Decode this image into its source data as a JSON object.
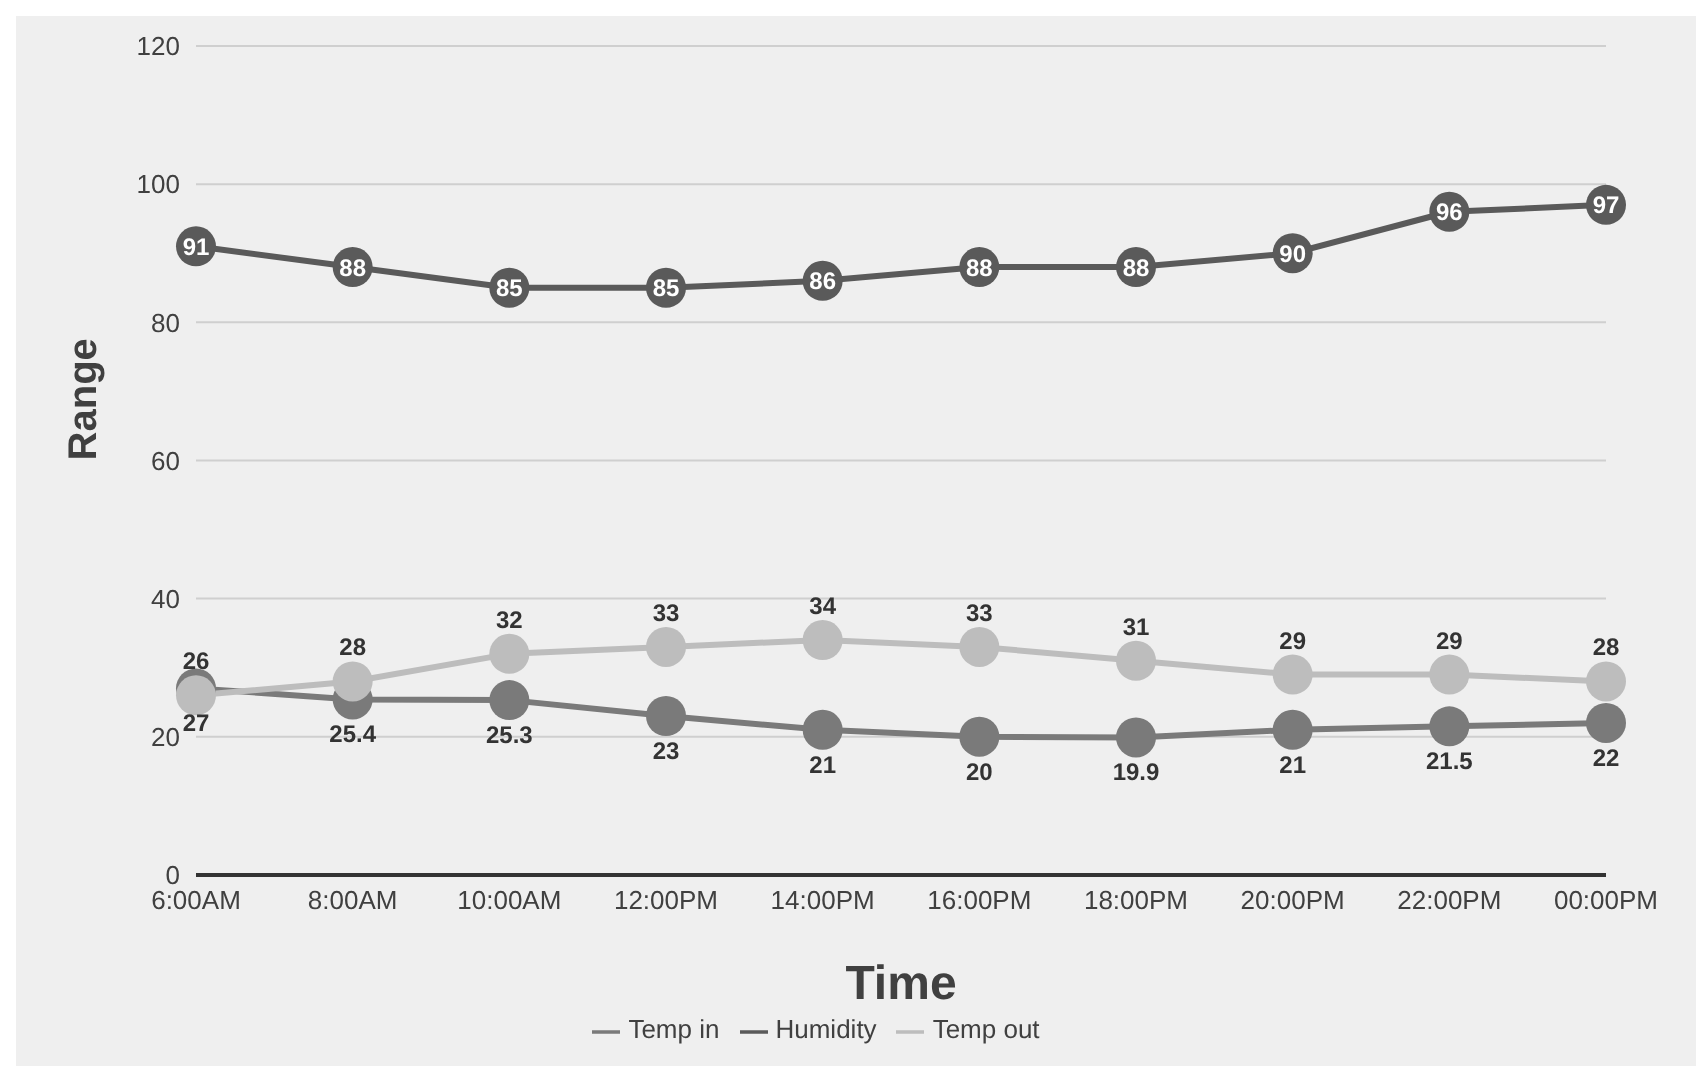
{
  "chart_data": {
    "type": "line",
    "xlabel": "Time",
    "ylabel": "Range",
    "categories": [
      "6:00AM",
      "8:00AM",
      "10:00AM",
      "12:00PM",
      "14:00PM",
      "16:00PM",
      "18:00PM",
      "20:00PM",
      "22:00PM",
      "00:00PM"
    ],
    "series": [
      {
        "name": "Temp in",
        "color": "#7a7a7a",
        "values": [
          27,
          25.4,
          25.3,
          23,
          21,
          20,
          19.9,
          21,
          21.5,
          22
        ]
      },
      {
        "name": "Humidity",
        "color": "#5a5a5a",
        "values": [
          91,
          88,
          85,
          85,
          86,
          88,
          88,
          90,
          96,
          97
        ]
      },
      {
        "name": "Temp out",
        "color": "#bdbdbd",
        "values": [
          26,
          28,
          32,
          33,
          34,
          33,
          31,
          29,
          29,
          28
        ]
      }
    ],
    "ylim": [
      0,
      120
    ],
    "yticks": [
      0,
      20,
      40,
      60,
      80,
      100,
      120
    ],
    "grid": "y",
    "legend": "bottom",
    "marker": "circle",
    "data_labels": true
  }
}
